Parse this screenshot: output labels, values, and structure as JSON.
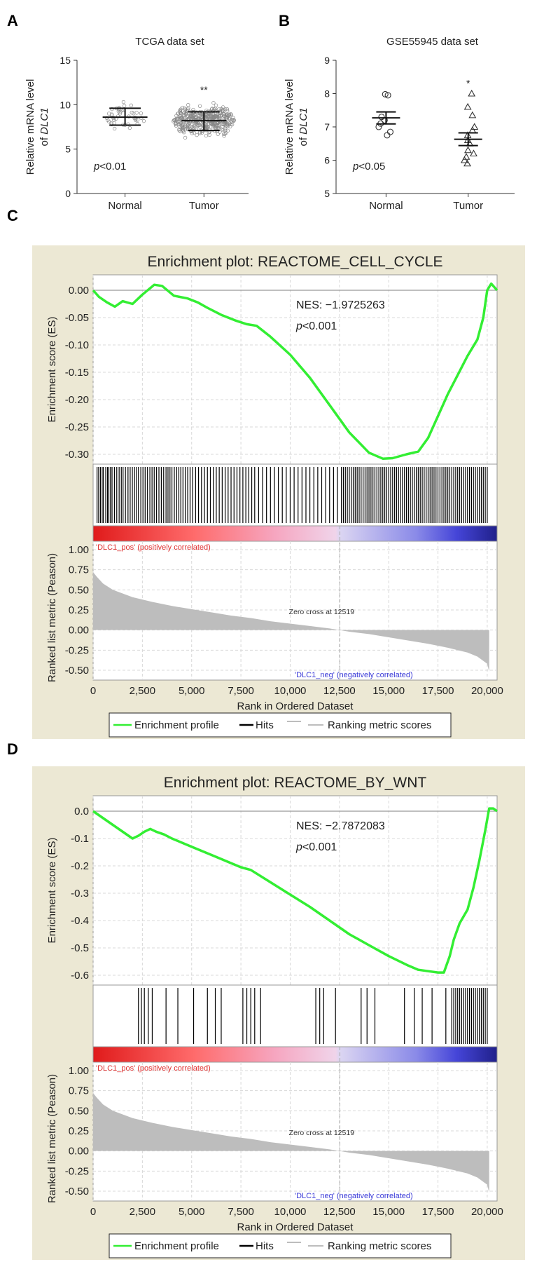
{
  "panel_letters": {
    "a": "A",
    "b": "B",
    "c": "C",
    "d": "D"
  },
  "colors": {
    "enrichment_line": "#33ee33",
    "hits": "#000000",
    "ranked_fill": "#bdbdbd",
    "gsea_background": "#ece8d4",
    "pos_label": "#e03131",
    "neg_label": "#3b3bd8"
  },
  "chart_data": [
    {
      "id": "A",
      "type": "scatter",
      "title": "TCGA data set",
      "ylabel_prefix": "Relative mRNA level",
      "ylabel_of": "of",
      "ylabel_gene": "DLC1",
      "ylim": [
        0,
        15
      ],
      "yticks": [
        "0",
        "5",
        "10",
        "15"
      ],
      "categories": [
        "Normal",
        "Tumor"
      ],
      "groups": [
        {
          "name": "Normal",
          "mean": 8.6,
          "sd_low": 7.7,
          "sd_high": 9.6,
          "min": 7.3,
          "max": 10.3,
          "n": 45
        },
        {
          "name": "Tumor",
          "mean": 8.2,
          "sd_low": 7.1,
          "sd_high": 9.2,
          "min": 5.3,
          "max": 10.5,
          "n": 420
        }
      ],
      "significance": {
        "group": "Tumor",
        "marker": "**"
      },
      "pvalue": {
        "p": "p",
        "rest": "<0.01"
      }
    },
    {
      "id": "B",
      "type": "scatter",
      "title": "GSE55945 data set",
      "ylabel_prefix": "Relative mRNA level",
      "ylabel_of": "of",
      "ylabel_gene": "DLC1",
      "ylim": [
        5,
        9
      ],
      "yticks": [
        "5",
        "6",
        "7",
        "8",
        "9"
      ],
      "categories": [
        "Normal",
        "Tumor"
      ],
      "groups": [
        {
          "name": "Normal",
          "mean": 7.27,
          "sem_low": 7.09,
          "sem_high": 7.45,
          "marker": "circle",
          "points": [
            7.98,
            7.95,
            7.3,
            7.2,
            7.1,
            7.0,
            6.85,
            6.75
          ]
        },
        {
          "name": "Tumor",
          "mean": 6.63,
          "sem_low": 6.44,
          "sem_high": 6.82,
          "marker": "triangle",
          "points": [
            8.0,
            7.6,
            7.35,
            7.0,
            6.9,
            6.75,
            6.6,
            6.5,
            6.3,
            6.2,
            6.1,
            6.0,
            5.9
          ]
        }
      ],
      "significance": {
        "group": "Tumor",
        "marker": "*"
      },
      "pvalue": {
        "p": "p",
        "rest": "<0.05"
      }
    },
    {
      "id": "C",
      "type": "line",
      "title": "Enrichment plot: REACTOME_CELL_CYCLE",
      "es_ylabel": "Enrichment score (ES)",
      "es_ylim": [
        -0.3,
        0.0
      ],
      "es_yticks": [
        "0.00",
        "-0.05",
        "-0.10",
        "-0.15",
        "-0.20",
        "-0.25",
        "-0.30"
      ],
      "nes_label": "NES: −1.9725263",
      "pvalue": {
        "p": "p",
        "rest": "<0.001"
      },
      "es_x": [
        0,
        300,
        700,
        1100,
        1500,
        2000,
        2500,
        3100,
        3500,
        4100,
        4800,
        5300,
        5800,
        6500,
        7200,
        7800,
        8300,
        9000,
        10000,
        11000,
        12000,
        13000,
        14000,
        14700,
        15200,
        15900,
        16500,
        17000,
        17500,
        18000,
        18500,
        19000,
        19500,
        19800,
        20000,
        20200,
        20500
      ],
      "es_y": [
        0.0,
        -0.012,
        -0.022,
        -0.03,
        -0.02,
        -0.025,
        -0.008,
        0.01,
        0.008,
        -0.01,
        -0.015,
        -0.022,
        -0.032,
        -0.045,
        -0.055,
        -0.062,
        -0.065,
        -0.085,
        -0.118,
        -0.16,
        -0.21,
        -0.26,
        -0.297,
        -0.308,
        -0.307,
        -0.3,
        -0.295,
        -0.27,
        -0.23,
        -0.19,
        -0.155,
        -0.12,
        -0.09,
        -0.05,
        0.0,
        0.012,
        0.0
      ],
      "hits": [
        200,
        280,
        370,
        460,
        520,
        640,
        730,
        800,
        880,
        960,
        1080,
        1200,
        1320,
        1430,
        1520,
        1640,
        1770,
        1880,
        1990,
        2100,
        2200,
        2300,
        2420,
        2530,
        2640,
        2760,
        2880,
        2990,
        3100,
        3220,
        3340,
        3460,
        3580,
        3700,
        3800,
        3900,
        4000,
        4120,
        4240,
        4350,
        4450,
        4560,
        4680,
        4800,
        4920,
        5050,
        5200,
        5350,
        5500,
        5650,
        5800,
        5950,
        6100,
        6250,
        6400,
        6550,
        6700,
        6850,
        7000,
        7150,
        7300,
        7450,
        7600,
        7750,
        7900,
        8050,
        8200,
        8400,
        8600,
        8800,
        9000,
        9200,
        9400,
        9600,
        9800,
        10000,
        10200,
        10400,
        10600,
        10800,
        11000,
        11200,
        11400,
        11600,
        11800,
        12000,
        12200,
        12400,
        12600,
        12700,
        12800,
        12900,
        13000,
        13100,
        13200,
        13300,
        13400,
        13500,
        13600,
        13700,
        13800,
        13900,
        14000,
        14100,
        14200,
        14300,
        14400,
        14500,
        14600,
        14700,
        14800,
        14900,
        15000,
        15100,
        15200,
        15300,
        15400,
        15500,
        15600,
        15700,
        15800,
        15900,
        16000,
        16100,
        16200,
        16300,
        16400,
        16500,
        16600,
        16700,
        16800,
        16900,
        17000,
        17100,
        17200,
        17300,
        17400,
        17500,
        17600,
        17700,
        17800,
        17900,
        18000,
        18100,
        18200,
        18300,
        18400,
        18500,
        18600,
        18700,
        18800,
        18900,
        19000,
        19100,
        19200,
        19300,
        19400,
        19500,
        19600,
        19700,
        19800,
        19900,
        20000
      ],
      "ranked_ylabel": "Ranked list metric (Peason)",
      "ranked_ylim": [
        -0.5,
        1.0
      ],
      "ranked_yticks": [
        "1.00",
        "0.75",
        "0.50",
        "0.25",
        "0.00",
        "-0.25",
        "-0.50"
      ],
      "ranked_x": [
        0,
        200,
        500,
        1000,
        2000,
        3000,
        4000,
        5000,
        6000,
        7000,
        8000,
        9000,
        10000,
        11000,
        12000,
        12519,
        13000,
        14000,
        15000,
        16000,
        17000,
        18000,
        19000,
        19500,
        20000,
        20100
      ],
      "ranked_y": [
        0.72,
        0.66,
        0.58,
        0.5,
        0.41,
        0.35,
        0.3,
        0.26,
        0.22,
        0.18,
        0.15,
        0.11,
        0.08,
        0.05,
        0.02,
        0.0,
        -0.02,
        -0.05,
        -0.09,
        -0.13,
        -0.17,
        -0.22,
        -0.28,
        -0.33,
        -0.42,
        -0.52
      ],
      "pos_label": "'DLC1_pos' (positively correlated)",
      "neg_label": "'DLC1_neg' (negatively correlated)",
      "zero_cross_label": "Zero cross at 12519",
      "zero_cross": 12519,
      "xlabel": "Rank in Ordered Dataset",
      "xlim": [
        0,
        20500
      ],
      "xticks": [
        "0",
        "2,500",
        "5,000",
        "7,500",
        "10,000",
        "12,500",
        "15,000",
        "17,500",
        "20,000"
      ],
      "legend": {
        "enrichment": "Enrichment profile",
        "hits": "Hits",
        "ranking": "Ranking metric scores"
      }
    },
    {
      "id": "D",
      "type": "line",
      "title": "Enrichment plot: REACTOME_BY_WNT",
      "es_ylabel": "Enrichment score (ES)",
      "es_ylim": [
        -0.6,
        0.0
      ],
      "es_yticks": [
        "0.0",
        "-0.1",
        "-0.2",
        "-0.3",
        "-0.4",
        "-0.5",
        "-0.6"
      ],
      "nes_label": "NES: −2.7872083",
      "pvalue": {
        "p": "p",
        "rest": "<0.001"
      },
      "es_x": [
        0,
        1000,
        2000,
        2300,
        2600,
        2900,
        3200,
        3600,
        4000,
        5000,
        6000,
        6500,
        7000,
        7500,
        8000,
        9000,
        10000,
        11000,
        12000,
        13000,
        14000,
        15000,
        16000,
        16500,
        17000,
        17500,
        17800,
        18100,
        18300,
        18600,
        19000,
        19300,
        19600,
        19900,
        20100,
        20300,
        20500
      ],
      "es_y": [
        0.0,
        -0.05,
        -0.1,
        -0.09,
        -0.075,
        -0.065,
        -0.075,
        -0.085,
        -0.1,
        -0.13,
        -0.16,
        -0.175,
        -0.19,
        -0.205,
        -0.215,
        -0.26,
        -0.305,
        -0.35,
        -0.4,
        -0.45,
        -0.49,
        -0.53,
        -0.565,
        -0.58,
        -0.585,
        -0.59,
        -0.59,
        -0.53,
        -0.47,
        -0.41,
        -0.36,
        -0.28,
        -0.18,
        -0.07,
        0.01,
        0.01,
        0.0
      ],
      "hits": [
        2300,
        2450,
        2600,
        2800,
        3000,
        3700,
        4300,
        5100,
        5800,
        6200,
        6500,
        7600,
        7800,
        8000,
        8200,
        8500,
        11300,
        11500,
        11700,
        12300,
        13600,
        13900,
        14300,
        15800,
        16300,
        16700,
        17200,
        17900,
        18200,
        18300,
        18400,
        18500,
        18600,
        18700,
        18800,
        18900,
        19000,
        19100,
        19200,
        19300,
        19400,
        19500,
        19600,
        19700,
        19800,
        19900,
        20000
      ],
      "ranked_ylabel": "Ranked list metric (Peason)",
      "ranked_ylim": [
        -0.5,
        1.0
      ],
      "ranked_yticks": [
        "1.00",
        "0.75",
        "0.50",
        "0.25",
        "0.00",
        "-0.25",
        "-0.50"
      ],
      "ranked_x": [
        0,
        200,
        500,
        1000,
        2000,
        3000,
        4000,
        5000,
        6000,
        7000,
        8000,
        9000,
        10000,
        11000,
        12000,
        12519,
        13000,
        14000,
        15000,
        16000,
        17000,
        18000,
        19000,
        19500,
        20000,
        20100
      ],
      "ranked_y": [
        0.72,
        0.66,
        0.58,
        0.5,
        0.41,
        0.35,
        0.3,
        0.26,
        0.22,
        0.18,
        0.15,
        0.11,
        0.08,
        0.05,
        0.02,
        0.0,
        -0.02,
        -0.05,
        -0.09,
        -0.13,
        -0.17,
        -0.22,
        -0.28,
        -0.33,
        -0.42,
        -0.52
      ],
      "pos_label": "'DLC1_pos' (positively correlated)",
      "neg_label": "'DLC1_neg' (negatively correlated)",
      "zero_cross_label": "Zero cross at 12519",
      "zero_cross": 12519,
      "xlabel": "Rank in Ordered Dataset",
      "xlim": [
        0,
        20500
      ],
      "xticks": [
        "0",
        "2,500",
        "5,000",
        "7,500",
        "10,000",
        "12,500",
        "15,000",
        "17,500",
        "20,000"
      ],
      "legend": {
        "enrichment": "Enrichment profile",
        "hits": "Hits",
        "ranking": "Ranking metric scores"
      }
    }
  ]
}
